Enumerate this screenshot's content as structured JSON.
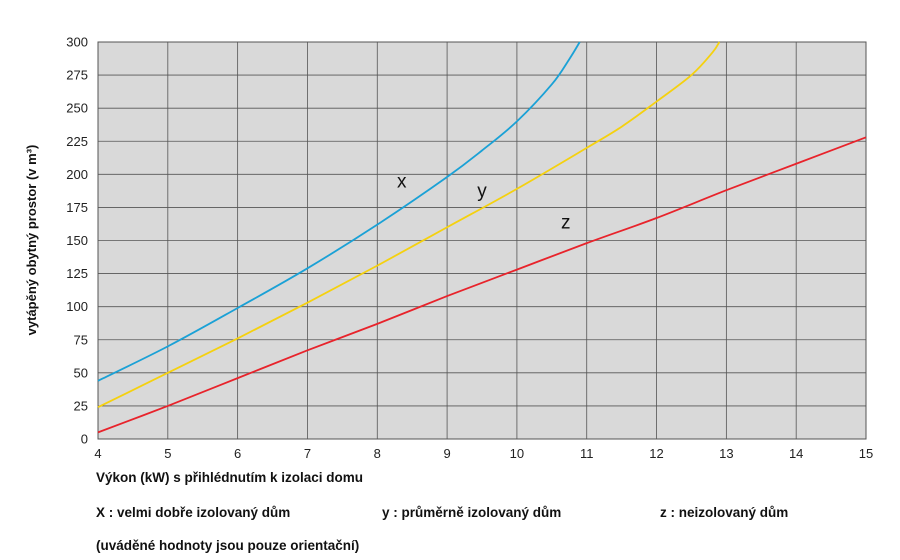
{
  "chart_data": {
    "type": "line",
    "xlabel": "Výkon (kW) s přihlédnutím k izolaci domu",
    "ylabel": "vytápěný obytný prostor (v m³)",
    "xlim": [
      4,
      15
    ],
    "ylim": [
      0,
      300
    ],
    "x_ticks": [
      4,
      5,
      6,
      7,
      8,
      9,
      10,
      11,
      12,
      13,
      14,
      15
    ],
    "y_ticks": [
      0,
      25,
      50,
      75,
      100,
      125,
      150,
      175,
      200,
      225,
      250,
      275,
      300
    ],
    "grid": true,
    "series": [
      {
        "name": "x",
        "color": "#1aa1d6",
        "points": [
          [
            4,
            44
          ],
          [
            5,
            70
          ],
          [
            6,
            99
          ],
          [
            7,
            129
          ],
          [
            8,
            162
          ],
          [
            9,
            198
          ],
          [
            9.5,
            218
          ],
          [
            10,
            240
          ],
          [
            10.5,
            268
          ],
          [
            10.75,
            287
          ],
          [
            10.9,
            300
          ]
        ]
      },
      {
        "name": "y",
        "color": "#f5d10f",
        "points": [
          [
            4,
            24
          ],
          [
            5,
            50
          ],
          [
            6,
            76
          ],
          [
            7,
            103
          ],
          [
            8,
            131
          ],
          [
            9,
            160
          ],
          [
            10,
            189
          ],
          [
            11,
            220
          ],
          [
            11.5,
            236
          ],
          [
            12,
            255
          ],
          [
            12.5,
            275
          ],
          [
            12.8,
            292
          ],
          [
            12.9,
            300
          ]
        ]
      },
      {
        "name": "z",
        "color": "#e8232b",
        "points": [
          [
            4,
            5
          ],
          [
            5,
            25
          ],
          [
            6,
            46
          ],
          [
            7,
            67
          ],
          [
            8,
            87
          ],
          [
            9,
            108
          ],
          [
            10,
            128
          ],
          [
            11,
            148
          ],
          [
            12,
            167
          ],
          [
            13,
            188
          ],
          [
            14,
            208
          ],
          [
            15,
            228
          ]
        ]
      }
    ],
    "annotations": [
      {
        "text": "x",
        "x": 8.35,
        "y": 190
      },
      {
        "text": "y",
        "x": 9.5,
        "y": 183
      },
      {
        "text": "z",
        "x": 10.7,
        "y": 159
      }
    ]
  },
  "legend": {
    "x": "X : velmi dobře izolovaný dům",
    "y": "y : průměrně izolovaný dům",
    "z": "z : neizolovaný dům"
  },
  "note": "(uváděné hodnoty jsou pouze orientační)"
}
